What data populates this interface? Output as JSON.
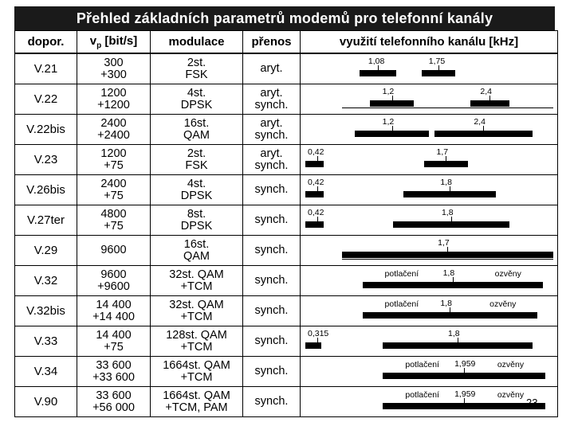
{
  "title": "Přehled základních parametrů modemů pro telefonní kanály",
  "headers": {
    "rec": "dopor.",
    "speed_v": "v",
    "speed_sub": "p",
    "speed_unit": "[bit/s]",
    "mod": "modulace",
    "trans": "přenos",
    "chan": "využití telefonního kanálu [kHz]"
  },
  "echo": {
    "left": "potlačení",
    "right": "ozvěny"
  },
  "page_number": "23",
  "rows": [
    {
      "rec": "V.21",
      "speed1": "300",
      "speed2": "+300",
      "mod1": "2st.",
      "mod2": "FSK",
      "t1": "aryt.",
      "t2": "",
      "labels": [
        "1,08",
        "1,75"
      ],
      "bars": [
        [
          0.23,
          0.14
        ],
        [
          0.47,
          0.13
        ]
      ],
      "echo": false,
      "line": false
    },
    {
      "rec": "V.22",
      "speed1": "1200",
      "speed2": "+1200",
      "mod1": "4st.",
      "mod2": "DPSK",
      "t1": "aryt.",
      "t2": "synch.",
      "labels": [
        "1,2",
        "2,4"
      ],
      "bars": [
        [
          0.27,
          0.17
        ],
        [
          0.66,
          0.15
        ]
      ],
      "echo": false,
      "line": true
    },
    {
      "rec": "V.22bis",
      "speed1": "2400",
      "speed2": "+2400",
      "mod1": "16st.",
      "mod2": "QAM",
      "t1": "aryt.",
      "t2": "synch.",
      "labels": [
        "1,2",
        "2,4"
      ],
      "bars": [
        [
          0.21,
          0.29
        ],
        [
          0.52,
          0.38
        ]
      ],
      "echo": false,
      "line": false
    },
    {
      "rec": "V.23",
      "speed1": "1200",
      "speed2": "+75",
      "mod1": "2st.",
      "mod2": "FSK",
      "t1": "aryt.",
      "t2": "synch.",
      "labels": [
        "0,42",
        "1,7"
      ],
      "bars": [
        [
          0.02,
          0.07
        ],
        [
          0.48,
          0.17
        ]
      ],
      "echo": false,
      "line": false
    },
    {
      "rec": "V.26bis",
      "speed1": "2400",
      "speed2": "+75",
      "mod1": "4st.",
      "mod2": "DPSK",
      "t1": "synch.",
      "t2": "",
      "labels": [
        "0,42",
        "1,8"
      ],
      "bars": [
        [
          0.02,
          0.07
        ],
        [
          0.4,
          0.36
        ]
      ],
      "echo": false,
      "line": false
    },
    {
      "rec": "V.27ter",
      "speed1": "4800",
      "speed2": "+75",
      "mod1": "8st.",
      "mod2": "DPSK",
      "t1": "synch.",
      "t2": "",
      "labels": [
        "0,42",
        "1,8"
      ],
      "bars": [
        [
          0.02,
          0.07
        ],
        [
          0.36,
          0.45
        ]
      ],
      "echo": false,
      "line": false
    },
    {
      "rec": "V.29",
      "speed1": "9600",
      "speed2": "",
      "mod1": "16st.",
      "mod2": "QAM",
      "t1": "synch.",
      "t2": "",
      "labels": [
        "",
        "1,7"
      ],
      "bars": [
        [
          0.16,
          0.82
        ]
      ],
      "echo": false,
      "line": true
    },
    {
      "rec": "V.32",
      "speed1": "9600",
      "speed2": "+9600",
      "mod1": "32st. QAM",
      "mod2": "+TCM",
      "t1": "synch.",
      "t2": "",
      "labels": [
        "",
        "1,8"
      ],
      "bars": [
        [
          0.24,
          0.7
        ]
      ],
      "echo": true,
      "line": false
    },
    {
      "rec": "V.32bis",
      "speed1": "14 400",
      "speed2": "+14 400",
      "mod1": "32st. QAM",
      "mod2": "+TCM",
      "t1": "synch.",
      "t2": "",
      "labels": [
        "",
        "1,8"
      ],
      "bars": [
        [
          0.24,
          0.68
        ]
      ],
      "echo": true,
      "line": false
    },
    {
      "rec": "V.33",
      "speed1": "14 400",
      "speed2": "+75",
      "mod1": "128st. QAM",
      "mod2": "+TCM",
      "t1": "synch.",
      "t2": "",
      "labels": [
        "0,315",
        "1,8"
      ],
      "bars": [
        [
          0.02,
          0.06
        ],
        [
          0.32,
          0.58
        ]
      ],
      "echo": false,
      "line": false
    },
    {
      "rec": "V.34",
      "speed1": "33 600",
      "speed2": "+33 600",
      "mod1": "1664st. QAM",
      "mod2": "+TCM",
      "t1": "synch.",
      "t2": "",
      "labels": [
        "",
        "1,959"
      ],
      "bars": [
        [
          0.32,
          0.63
        ]
      ],
      "echo": true,
      "line": false
    },
    {
      "rec": "V.90",
      "speed1": "33 600",
      "speed2": "+56 000",
      "mod1": "1664st. QAM",
      "mod2": "+TCM, PAM",
      "t1": "synch.",
      "t2": "",
      "labels": [
        "",
        "1,959"
      ],
      "bars": [
        [
          0.32,
          0.63
        ]
      ],
      "echo": true,
      "line": false
    }
  ]
}
